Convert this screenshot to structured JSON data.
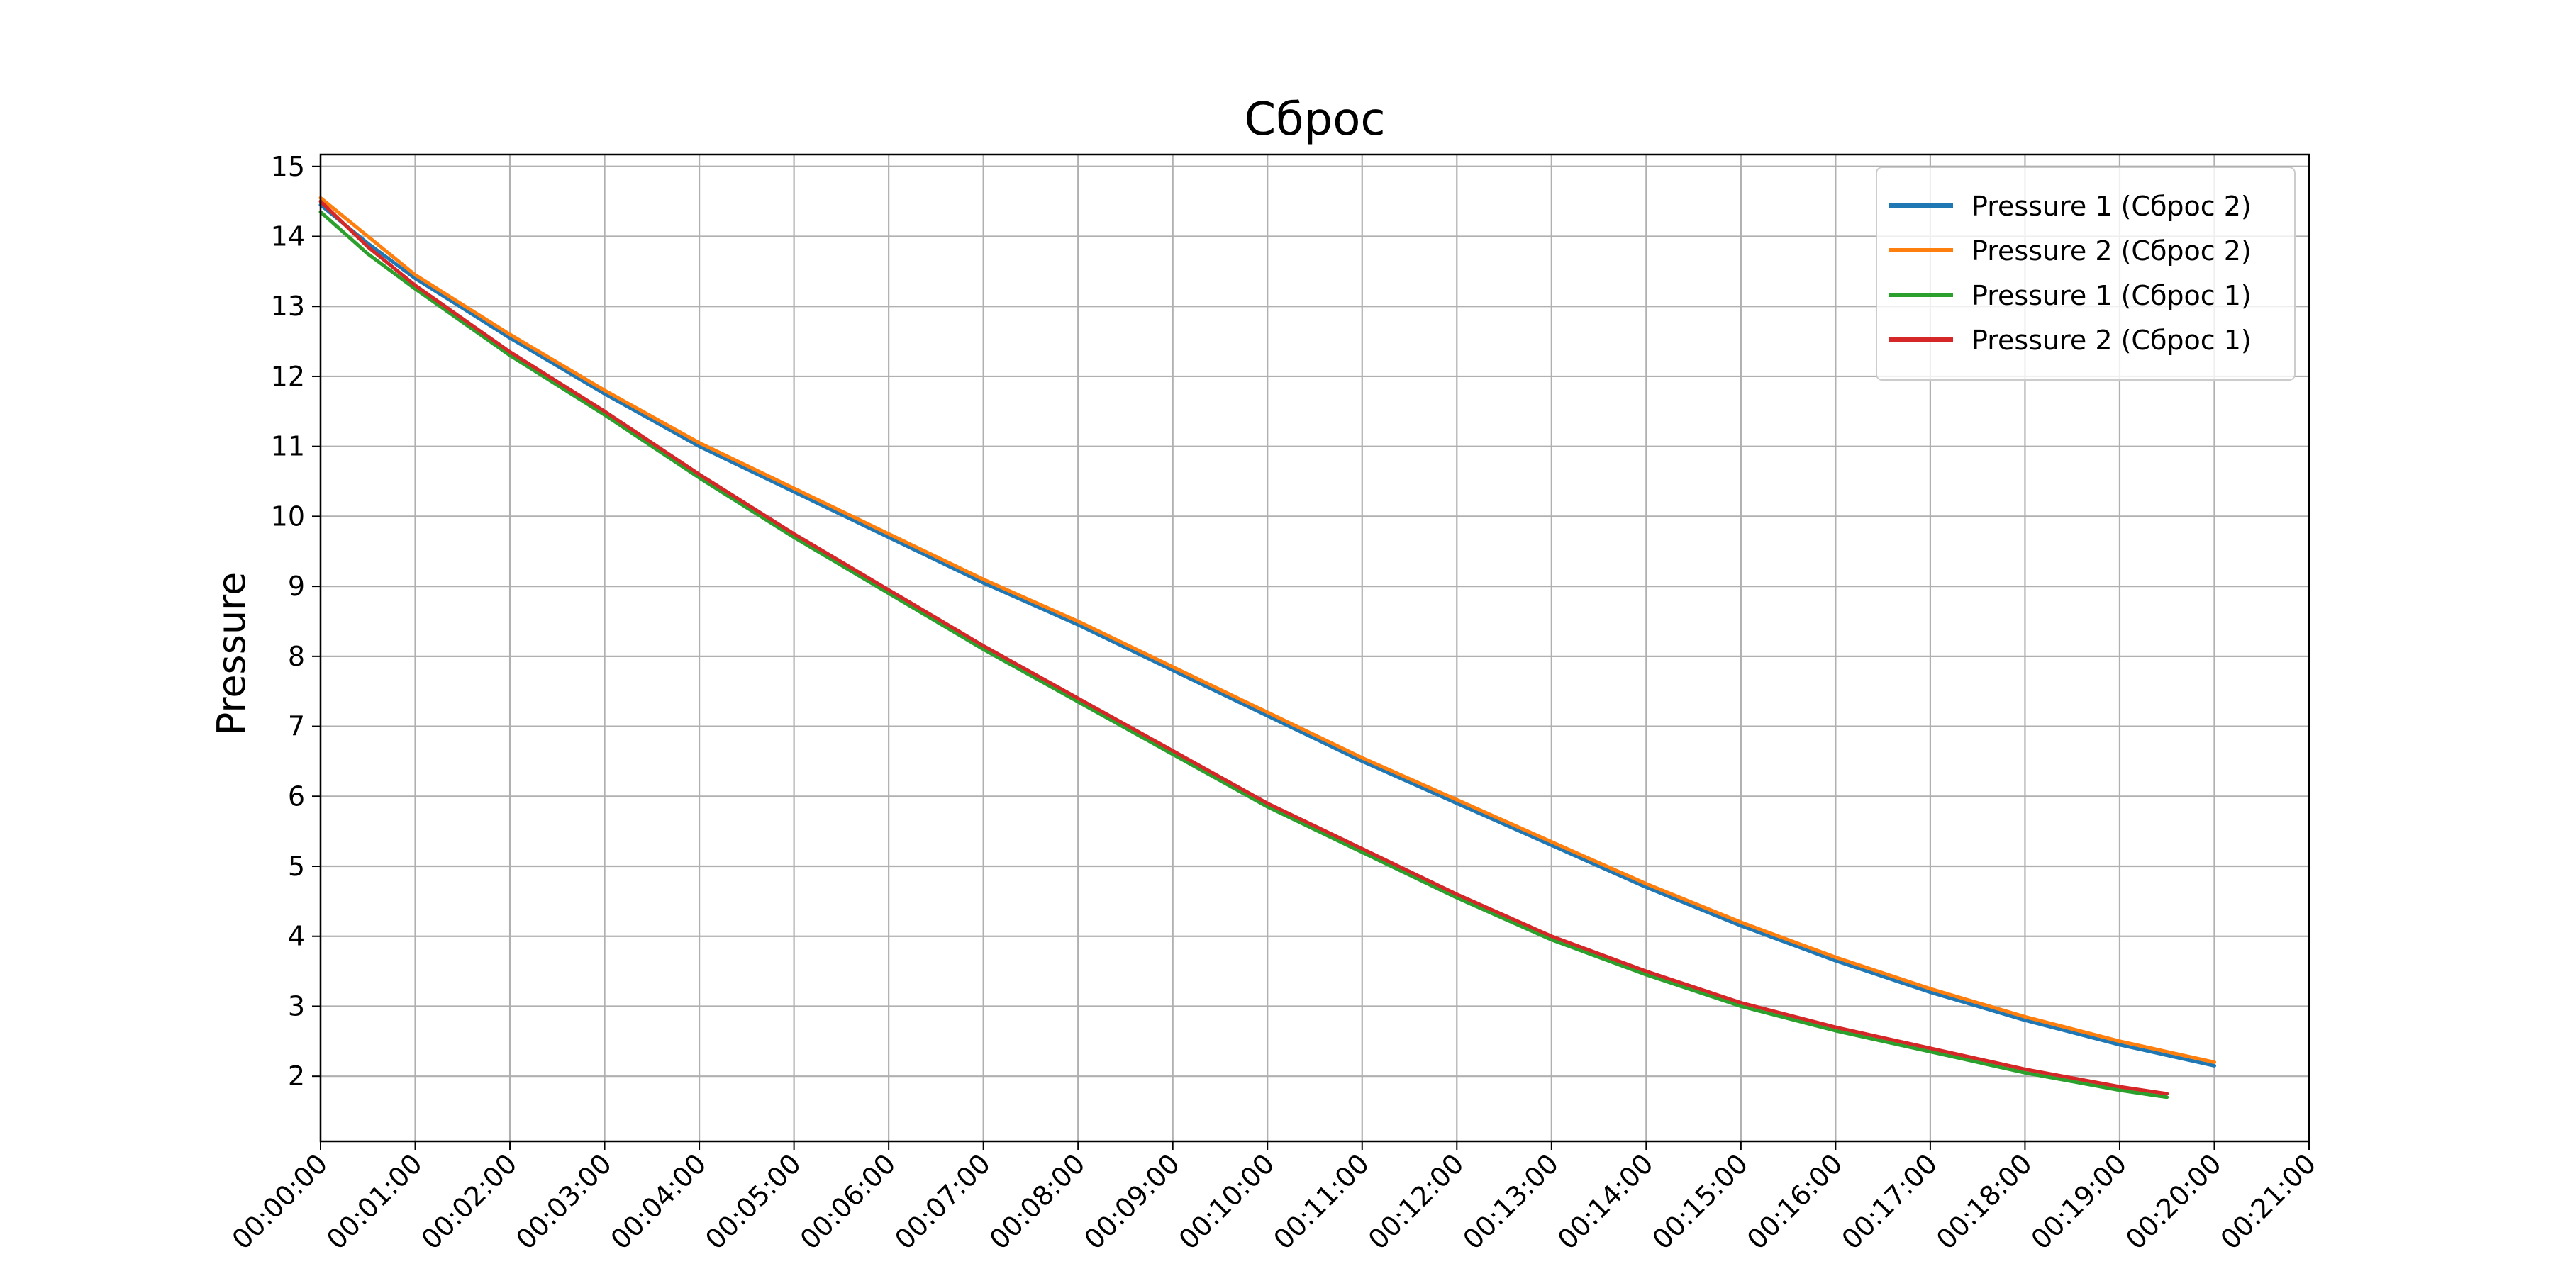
{
  "chart_data": {
    "type": "line",
    "title": "Сброс",
    "xlabel": "",
    "ylabel": "Pressure",
    "x_ticks": [
      "00:00:00",
      "00:01:00",
      "00:02:00",
      "00:03:00",
      "00:04:00",
      "00:05:00",
      "00:06:00",
      "00:07:00",
      "00:08:00",
      "00:09:00",
      "00:10:00",
      "00:11:00",
      "00:12:00",
      "00:13:00",
      "00:14:00",
      "00:15:00",
      "00:16:00",
      "00:17:00",
      "00:18:00",
      "00:19:00",
      "00:20:00",
      "00:21:00"
    ],
    "y_ticks": [
      "2",
      "3",
      "4",
      "5",
      "6",
      "7",
      "8",
      "9",
      "10",
      "11",
      "12",
      "13",
      "14",
      "15"
    ],
    "xlim": [
      "00:00:00",
      "00:21:00"
    ],
    "ylim": [
      1.07,
      15.17
    ],
    "grid": true,
    "legend_position": "top-right",
    "series": [
      {
        "name": "Pressure 1 (Сброс 2)",
        "color": "#1f77b4",
        "x": [
          "00:00:00",
          "00:00:30",
          "00:01:00",
          "00:02:00",
          "00:03:00",
          "00:04:00",
          "00:05:00",
          "00:06:00",
          "00:07:00",
          "00:08:00",
          "00:09:00",
          "00:10:00",
          "00:11:00",
          "00:12:00",
          "00:13:00",
          "00:14:00",
          "00:15:00",
          "00:16:00",
          "00:17:00",
          "00:18:00",
          "00:19:00",
          "00:20:00"
        ],
        "y": [
          14.45,
          13.9,
          13.4,
          12.55,
          11.75,
          11.0,
          10.35,
          9.7,
          9.05,
          8.45,
          7.8,
          7.15,
          6.5,
          5.9,
          5.3,
          4.7,
          4.15,
          3.65,
          3.2,
          2.8,
          2.45,
          2.15
        ]
      },
      {
        "name": "Pressure 2 (Сброс 2)",
        "color": "#ff7f0e",
        "x": [
          "00:00:00",
          "00:00:30",
          "00:01:00",
          "00:02:00",
          "00:03:00",
          "00:04:00",
          "00:05:00",
          "00:06:00",
          "00:07:00",
          "00:08:00",
          "00:09:00",
          "00:10:00",
          "00:11:00",
          "00:12:00",
          "00:13:00",
          "00:14:00",
          "00:15:00",
          "00:16:00",
          "00:17:00",
          "00:18:00",
          "00:19:00",
          "00:20:00"
        ],
        "y": [
          14.55,
          14.0,
          13.45,
          12.6,
          11.8,
          11.05,
          10.4,
          9.75,
          9.1,
          8.5,
          7.85,
          7.2,
          6.55,
          5.95,
          5.35,
          4.75,
          4.2,
          3.7,
          3.25,
          2.85,
          2.5,
          2.2
        ]
      },
      {
        "name": "Pressure 1 (Сброс 1)",
        "color": "#2ca02c",
        "x": [
          "00:00:00",
          "00:00:30",
          "00:01:00",
          "00:02:00",
          "00:03:00",
          "00:04:00",
          "00:05:00",
          "00:06:00",
          "00:07:00",
          "00:08:00",
          "00:09:00",
          "00:10:00",
          "00:11:00",
          "00:12:00",
          "00:13:00",
          "00:14:00",
          "00:15:00",
          "00:16:00",
          "00:17:00",
          "00:18:00",
          "00:19:00",
          "00:19:30"
        ],
        "y": [
          14.35,
          13.75,
          13.25,
          12.3,
          11.45,
          10.55,
          9.7,
          8.9,
          8.1,
          7.35,
          6.6,
          5.85,
          5.2,
          4.55,
          3.95,
          3.45,
          3.0,
          2.65,
          2.35,
          2.05,
          1.8,
          1.7
        ]
      },
      {
        "name": "Pressure 2 (Сброс 1)",
        "color": "#d62728",
        "x": [
          "00:00:00",
          "00:00:30",
          "00:01:00",
          "00:02:00",
          "00:03:00",
          "00:04:00",
          "00:05:00",
          "00:06:00",
          "00:07:00",
          "00:08:00",
          "00:09:00",
          "00:10:00",
          "00:11:00",
          "00:12:00",
          "00:13:00",
          "00:14:00",
          "00:15:00",
          "00:16:00",
          "00:17:00",
          "00:18:00",
          "00:19:00",
          "00:19:30"
        ],
        "y": [
          14.5,
          13.85,
          13.3,
          12.35,
          11.5,
          10.6,
          9.75,
          8.95,
          8.15,
          7.4,
          6.65,
          5.9,
          5.25,
          4.6,
          4.0,
          3.5,
          3.05,
          2.7,
          2.4,
          2.1,
          1.85,
          1.75
        ]
      }
    ]
  }
}
